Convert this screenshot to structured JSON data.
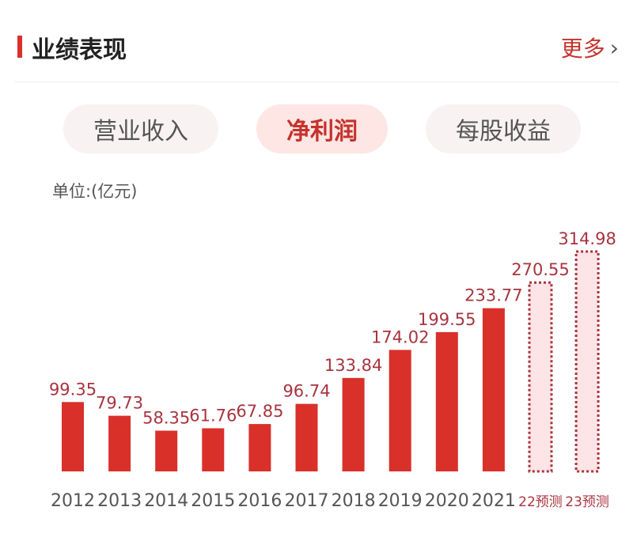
{
  "header": {
    "title": "业绩表现",
    "more_label": "更多"
  },
  "tabs": [
    {
      "label": "营业收入",
      "active": false
    },
    {
      "label": "净利润",
      "active": true
    },
    {
      "label": "每股收益",
      "active": false
    }
  ],
  "unit_label": "单位:(亿元)",
  "colors": {
    "accent": "#d9302a",
    "forecast_fill": "#fde4e6",
    "forecast_border": "#a8343f"
  },
  "chart_data": {
    "type": "bar",
    "categories": [
      "2012",
      "2013",
      "2014",
      "2015",
      "2016",
      "2017",
      "2018",
      "2019",
      "2020",
      "2021",
      "22预测",
      "23预测"
    ],
    "values": [
      99.35,
      79.73,
      58.35,
      61.76,
      67.85,
      96.74,
      133.84,
      174.02,
      199.55,
      233.77,
      270.55,
      314.98
    ],
    "value_labels": [
      "99.35",
      "79.73",
      "58.35",
      "61.76",
      "67.85",
      "96.74",
      "133.84",
      "174.02",
      "199.55",
      "233.77",
      "270.55",
      "314.98"
    ],
    "forecast": [
      false,
      false,
      false,
      false,
      false,
      false,
      false,
      false,
      false,
      false,
      true,
      true
    ],
    "ylim": [
      0,
      314.98
    ],
    "grid": false,
    "title": "",
    "xlabel": "",
    "ylabel": ""
  }
}
